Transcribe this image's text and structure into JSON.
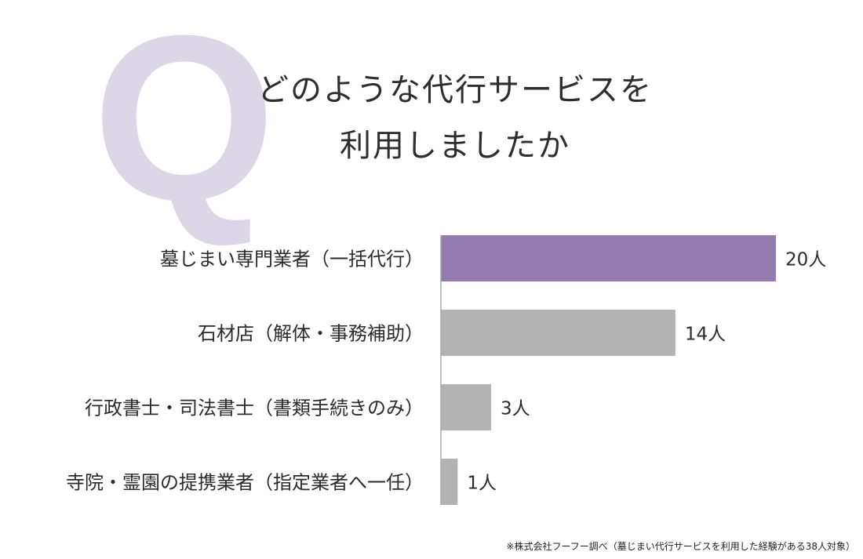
{
  "q_letter": "Q",
  "title_lines": [
    "どのような代行サービスを",
    "利用しましたか"
  ],
  "chart_data": {
    "type": "bar",
    "orientation": "horizontal",
    "categories": [
      "墓じまい専門業者（一括代行）",
      "石材店（解体・事務補助）",
      "行政書士・司法書士（書類手続きのみ）",
      "寺院・霊園の提携業者（指定業者へ一任）"
    ],
    "values": [
      20,
      14,
      3,
      1
    ],
    "value_labels": [
      "20人",
      "14人",
      "3人",
      "1人"
    ],
    "colors": [
      "#937bb0",
      "#b3b3b3",
      "#b3b3b3",
      "#b3b3b3"
    ],
    "xlim": [
      0,
      20
    ],
    "grid": false
  },
  "footnote": "※株式会社フーフー調べ（墓じまい代行サービスを利用した経験がある38人対象）"
}
